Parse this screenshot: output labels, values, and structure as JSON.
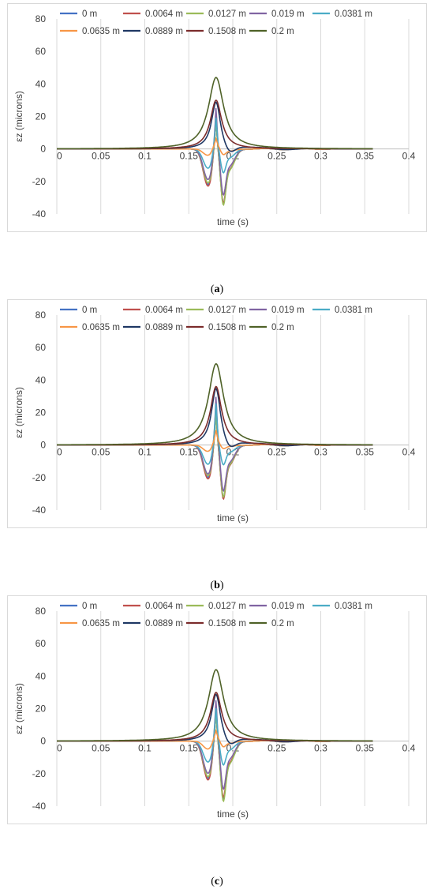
{
  "chart_data": [
    {
      "type": "line",
      "caption": "a",
      "xlabel": "time (s)",
      "ylabel": "εz (microns)",
      "xlim": [
        0,
        0.4
      ],
      "ylim": [
        -40,
        80
      ],
      "xticks": [
        "0",
        "0.05",
        "0.1",
        "0.15",
        "0.2",
        "0.25",
        "0.3",
        "0.35",
        "0.4"
      ],
      "yticks": [
        "-40",
        "-20",
        "0",
        "20",
        "40",
        "60",
        "80"
      ],
      "grid": "vertical",
      "legend_position": "top",
      "series": [
        {
          "name": "0 m",
          "color": "#4472c4",
          "peak": 20,
          "trough": -22,
          "tail": -27
        },
        {
          "name": "0.0064 m",
          "color": "#c0504d",
          "peak": 20,
          "trough": -23,
          "tail": -27
        },
        {
          "name": "0.0127 m",
          "color": "#9bbb59",
          "peak": 20,
          "trough": -21,
          "tail": -28
        },
        {
          "name": "0.019 m",
          "color": "#8064a2",
          "peak": 29,
          "trough": -19,
          "tail": -23
        },
        {
          "name": "0.0381 m",
          "color": "#4bacc6",
          "peak": 22,
          "trough": -12,
          "tail": -12
        },
        {
          "name": "0.0635 m",
          "color": "#f79646",
          "peak": 5,
          "trough": -4,
          "tail": -3
        },
        {
          "name": "0.0889 m",
          "color": "#1f3864",
          "peak": 29,
          "trough": -1,
          "tail": -5
        },
        {
          "name": "0.1508 m",
          "color": "#7b2c2c",
          "peak": 30,
          "trough": 0,
          "tail": -1
        },
        {
          "name": "0.2 m",
          "color": "#4f6228",
          "peak": 44,
          "trough": 0,
          "tail": 0
        }
      ]
    },
    {
      "type": "line",
      "caption": "b",
      "xlabel": "time (s)",
      "ylabel": "εz (microns)",
      "xlim": [
        0,
        0.4
      ],
      "ylim": [
        -40,
        80
      ],
      "xticks": [
        "0",
        "0.05",
        "0.1",
        "0.15",
        "0.2",
        "0.25",
        "0.3",
        "0.35",
        "0.4"
      ],
      "yticks": [
        "-40",
        "-20",
        "0",
        "20",
        "40",
        "60",
        "80"
      ],
      "grid": "vertical",
      "legend_position": "top",
      "series": [
        {
          "name": "0 m",
          "color": "#4472c4",
          "peak": 22,
          "trough": -20,
          "tail": -26
        },
        {
          "name": "0.0064 m",
          "color": "#c0504d",
          "peak": 23,
          "trough": -21,
          "tail": -27
        },
        {
          "name": "0.0127 m",
          "color": "#9bbb59",
          "peak": 22,
          "trough": -19,
          "tail": -26
        },
        {
          "name": "0.019 m",
          "color": "#8064a2",
          "peak": 34,
          "trough": -18,
          "tail": -23
        },
        {
          "name": "0.0381 m",
          "color": "#4bacc6",
          "peak": 29,
          "trough": -12,
          "tail": -10
        },
        {
          "name": "0.0635 m",
          "color": "#f79646",
          "peak": 8,
          "trough": -4,
          "tail": -2
        },
        {
          "name": "0.0889 m",
          "color": "#1f3864",
          "peak": 35,
          "trough": -1,
          "tail": -4
        },
        {
          "name": "0.1508 m",
          "color": "#7b2c2c",
          "peak": 36,
          "trough": 0,
          "tail": -1
        },
        {
          "name": "0.2 m",
          "color": "#4f6228",
          "peak": 50,
          "trough": 0,
          "tail": 0
        }
      ]
    },
    {
      "type": "line",
      "caption": "c",
      "xlabel": "time (s)",
      "ylabel": "εz (microns)",
      "xlim": [
        0,
        0.4
      ],
      "ylim": [
        -40,
        80
      ],
      "xticks": [
        "0",
        "0.05",
        "0.1",
        "0.15",
        "0.2",
        "0.25",
        "0.3",
        "0.35",
        "0.4"
      ],
      "yticks": [
        "-40",
        "-20",
        "0",
        "20",
        "40",
        "60",
        "80"
      ],
      "grid": "vertical",
      "legend_position": "top",
      "series": [
        {
          "name": "0 m",
          "color": "#4472c4",
          "peak": 20,
          "trough": -23,
          "tail": -29
        },
        {
          "name": "0.0064 m",
          "color": "#c0504d",
          "peak": 20,
          "trough": -24,
          "tail": -28
        },
        {
          "name": "0.0127 m",
          "color": "#9bbb59",
          "peak": 20,
          "trough": -22,
          "tail": -30
        },
        {
          "name": "0.019 m",
          "color": "#8064a2",
          "peak": 29,
          "trough": -20,
          "tail": -24
        },
        {
          "name": "0.0381 m",
          "color": "#4bacc6",
          "peak": 23,
          "trough": -13,
          "tail": -12
        },
        {
          "name": "0.0635 m",
          "color": "#f79646",
          "peak": 5,
          "trough": -5,
          "tail": -3
        },
        {
          "name": "0.0889 m",
          "color": "#1f3864",
          "peak": 29,
          "trough": -1,
          "tail": -5
        },
        {
          "name": "0.1508 m",
          "color": "#7b2c2c",
          "peak": 30,
          "trough": 0,
          "tail": -1
        },
        {
          "name": "0.2 m",
          "color": "#4f6228",
          "peak": 44,
          "trough": 0,
          "tail": 0
        }
      ]
    }
  ]
}
